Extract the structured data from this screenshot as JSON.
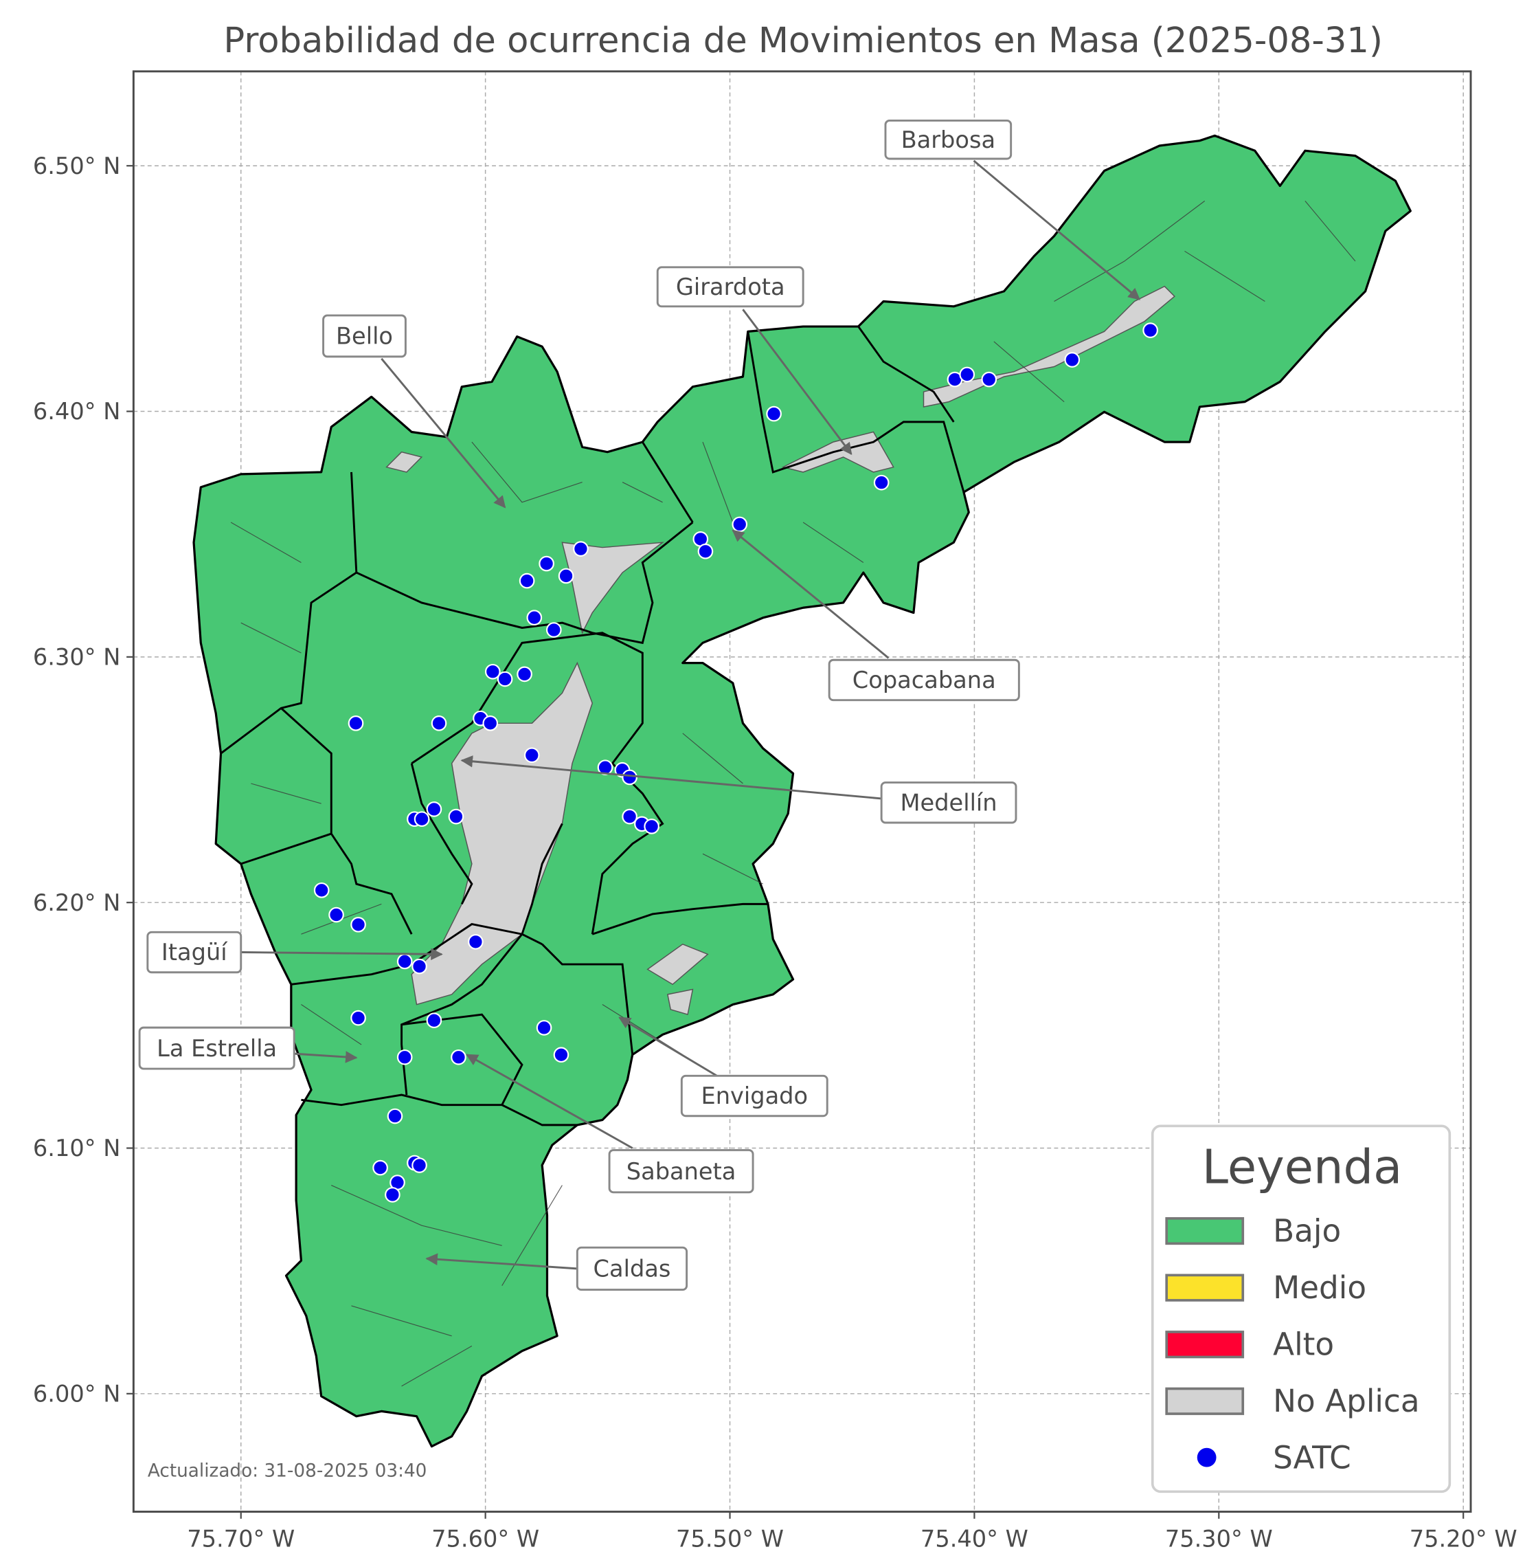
{
  "chart_data": {
    "type": "map",
    "title": "Probabilidad de ocurrencia de Movimientos en Masa (2025-08-31)",
    "x_ticks": [
      "75.70° W",
      "75.60° W",
      "75.50° W",
      "75.40° W",
      "75.30° W",
      "75.20° W"
    ],
    "x_tick_values": [
      75.7,
      75.6,
      75.5,
      75.4,
      75.3,
      75.2
    ],
    "y_ticks": [
      "6.50° N",
      "6.40° N",
      "6.30° N",
      "6.20° N",
      "6.10° N",
      "6.00° N"
    ],
    "y_tick_values": [
      6.5,
      6.4,
      6.3,
      6.2,
      6.1,
      6.0
    ],
    "xlim_west_deg": [
      75.744,
      75.197
    ],
    "ylim_north_deg": [
      5.955,
      6.537
    ],
    "grid": true,
    "legend": {
      "title": "Leyenda",
      "placement": "bottom-right",
      "items": [
        {
          "label": "Bajo",
          "color": "#48c774",
          "kind": "patch"
        },
        {
          "label": "Medio",
          "color": "#fce22a",
          "kind": "patch"
        },
        {
          "label": "Alto",
          "color": "#ff0033",
          "kind": "patch"
        },
        {
          "label": "No Aplica",
          "color": "#d3d3d3",
          "kind": "patch"
        },
        {
          "label": "SATC",
          "color": "#0000ee",
          "kind": "point"
        }
      ]
    },
    "municipality_levels": [
      {
        "name": "Barbosa",
        "level": "Bajo"
      },
      {
        "name": "Girardota",
        "level": "Bajo"
      },
      {
        "name": "Bello",
        "level": "Bajo"
      },
      {
        "name": "Copacabana",
        "level": "Bajo"
      },
      {
        "name": "Medellín",
        "level": "Bajo"
      },
      {
        "name": "Itagüí",
        "level": "Bajo"
      },
      {
        "name": "La Estrella",
        "level": "Bajo"
      },
      {
        "name": "Envigado",
        "level": "Bajo"
      },
      {
        "name": "Sabaneta",
        "level": "Bajo"
      },
      {
        "name": "Caldas",
        "level": "Bajo"
      }
    ],
    "satc_stations_lon_w_lat_n": [
      [
        75.482,
        6.399
      ],
      [
        75.408,
        6.413
      ],
      [
        75.403,
        6.415
      ],
      [
        75.394,
        6.413
      ],
      [
        75.36,
        6.421
      ],
      [
        75.328,
        6.433
      ],
      [
        75.438,
        6.371
      ],
      [
        75.496,
        6.354
      ],
      [
        75.512,
        6.348
      ],
      [
        75.51,
        6.343
      ],
      [
        75.561,
        6.344
      ],
      [
        75.575,
        6.338
      ],
      [
        75.583,
        6.331
      ],
      [
        75.567,
        6.333
      ],
      [
        75.58,
        6.316
      ],
      [
        75.572,
        6.311
      ],
      [
        75.597,
        6.294
      ],
      [
        75.592,
        6.291
      ],
      [
        75.584,
        6.293
      ],
      [
        75.653,
        6.273
      ],
      [
        75.619,
        6.273
      ],
      [
        75.602,
        6.275
      ],
      [
        75.598,
        6.273
      ],
      [
        75.581,
        6.26
      ],
      [
        75.551,
        6.255
      ],
      [
        75.544,
        6.254
      ],
      [
        75.541,
        6.251
      ],
      [
        75.541,
        6.235
      ],
      [
        75.536,
        6.232
      ],
      [
        75.532,
        6.231
      ],
      [
        75.621,
        6.238
      ],
      [
        75.629,
        6.234
      ],
      [
        75.626,
        6.234
      ],
      [
        75.612,
        6.235
      ],
      [
        75.667,
        6.205
      ],
      [
        75.661,
        6.195
      ],
      [
        75.652,
        6.191
      ],
      [
        75.604,
        6.184
      ],
      [
        75.633,
        6.176
      ],
      [
        75.627,
        6.174
      ],
      [
        75.652,
        6.153
      ],
      [
        75.621,
        6.152
      ],
      [
        75.576,
        6.149
      ],
      [
        75.569,
        6.138
      ],
      [
        75.633,
        6.137
      ],
      [
        75.611,
        6.137
      ],
      [
        75.637,
        6.113
      ],
      [
        75.643,
        6.092
      ],
      [
        75.629,
        6.094
      ],
      [
        75.627,
        6.093
      ],
      [
        75.636,
        6.086
      ],
      [
        75.638,
        6.081
      ]
    ],
    "colors": {
      "bajo": "#48c774",
      "no_aplica": "#d3d3d3",
      "station": "#0000ee",
      "boundary": "#000000"
    }
  },
  "annotations": [
    "Barbosa",
    "Girardota",
    "Bello",
    "Copacabana",
    "Medellín",
    "Itagüí",
    "La Estrella",
    "Envigado",
    "Sabaneta",
    "Caldas"
  ],
  "footer": {
    "updated": "Actualizado: 31-08-2025 03:40"
  }
}
